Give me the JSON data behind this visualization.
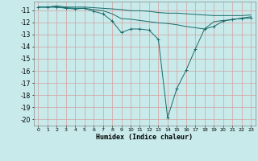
{
  "xlabel": "Humidex (Indice chaleur)",
  "bg_color": "#c8eaea",
  "grid_color": "#d4a0a0",
  "line_color": "#1a6b6b",
  "xlim": [
    -0.5,
    23.5
  ],
  "ylim": [
    -20.5,
    -10.3
  ],
  "yticks": [
    -11,
    -12,
    -13,
    -14,
    -15,
    -16,
    -17,
    -18,
    -19,
    -20
  ],
  "xticks": [
    0,
    1,
    2,
    3,
    4,
    5,
    6,
    7,
    8,
    9,
    10,
    11,
    12,
    13,
    14,
    15,
    16,
    17,
    18,
    19,
    20,
    21,
    22,
    23
  ],
  "series": [
    {
      "x": [
        0,
        1,
        2,
        3,
        4,
        5,
        6,
        7,
        8,
        9,
        10,
        11,
        12,
        13,
        14,
        15,
        16,
        17,
        18,
        19,
        20,
        21,
        22,
        23
      ],
      "y": [
        -10.75,
        -10.75,
        -10.65,
        -10.75,
        -10.75,
        -10.75,
        -10.8,
        -10.85,
        -10.9,
        -10.95,
        -11.05,
        -11.05,
        -11.1,
        -11.2,
        -11.25,
        -11.25,
        -11.3,
        -11.35,
        -11.4,
        -11.45,
        -11.45,
        -11.45,
        -11.45,
        -11.4
      ],
      "markers": false
    },
    {
      "x": [
        0,
        1,
        2,
        3,
        4,
        5,
        6,
        7,
        8,
        9,
        10,
        11,
        12,
        13,
        14,
        15,
        16,
        17,
        18,
        19,
        20,
        21,
        22,
        23
      ],
      "y": [
        -10.75,
        -10.75,
        -10.75,
        -10.8,
        -10.85,
        -10.85,
        -10.95,
        -11.05,
        -11.3,
        -11.7,
        -11.75,
        -11.85,
        -11.95,
        -12.05,
        -12.1,
        -12.2,
        -12.35,
        -12.45,
        -12.55,
        -11.95,
        -11.85,
        -11.8,
        -11.65,
        -11.55
      ],
      "markers": false
    },
    {
      "x": [
        0,
        1,
        2,
        3,
        4,
        5,
        6,
        7,
        8,
        9,
        10,
        11,
        12,
        13,
        14,
        15,
        16,
        17,
        18,
        19,
        20,
        21,
        22,
        23
      ],
      "y": [
        -10.75,
        -10.75,
        -10.75,
        -10.85,
        -10.9,
        -10.85,
        -11.1,
        -11.3,
        -11.9,
        -12.85,
        -12.55,
        -12.55,
        -12.65,
        -13.4,
        -19.85,
        -17.45,
        -15.95,
        -14.2,
        -12.55,
        -12.35,
        -11.9,
        -11.75,
        -11.7,
        -11.65
      ],
      "markers": true
    }
  ]
}
